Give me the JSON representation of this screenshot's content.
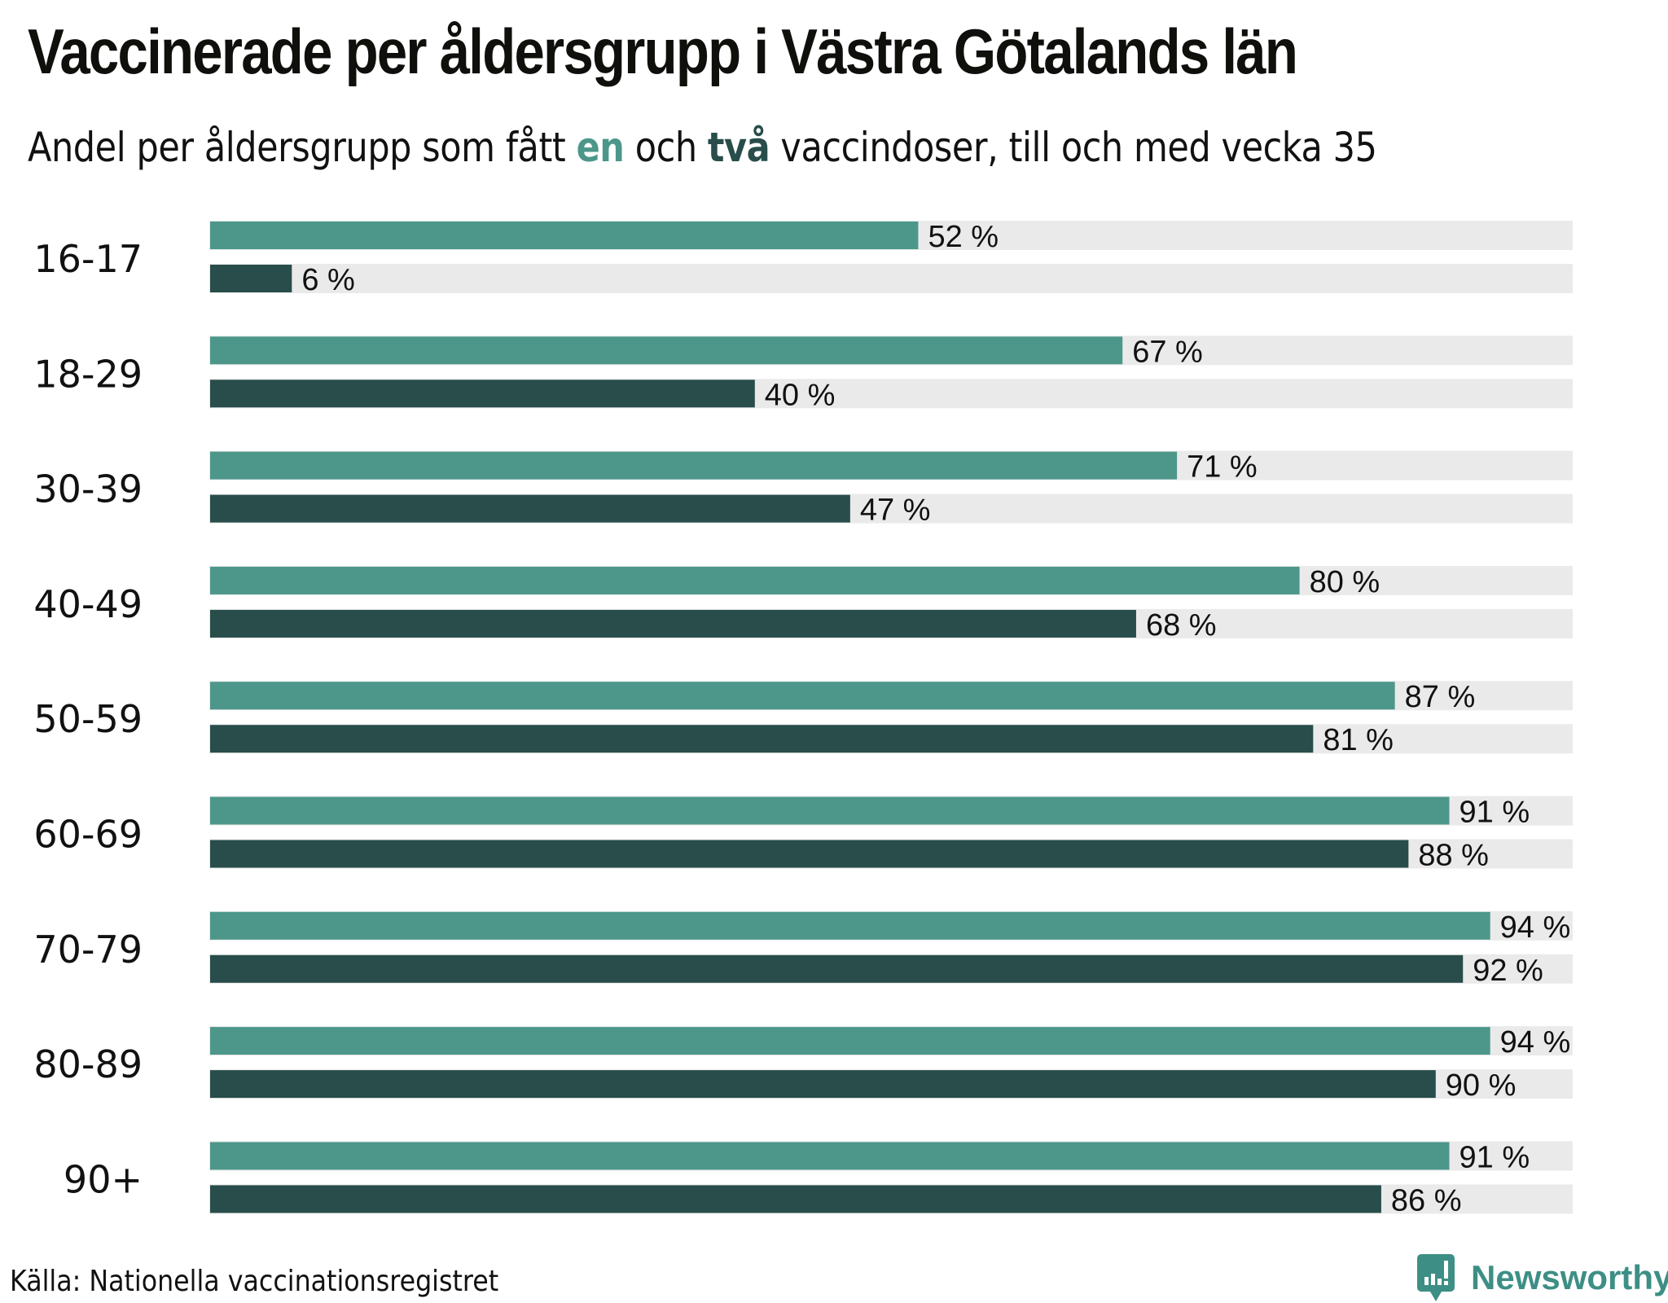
{
  "title": "Vaccinerade per åldersgrupp i Västra Götalands län",
  "subtitle": {
    "part1": "Andel per åldersgrupp som fått ",
    "en": "en",
    "part2": " och ",
    "tva": "två",
    "part3": " vaccindoser, till och med vecka 35"
  },
  "source": "Källa: Nationella vaccinationsregistret",
  "logo": {
    "text": "Newsworthy",
    "icon": "newsworthy-logo-icon"
  },
  "colors": {
    "en": "#4c978a",
    "tva": "#284d4a",
    "track": "#eaeaea"
  },
  "chart_data": {
    "type": "bar",
    "orientation": "horizontal",
    "title": "Vaccinerade per åldersgrupp i Västra Götalands län",
    "subtitle": "Andel per åldersgrupp som fått en och två vaccindoser, till och med vecka 35",
    "xlabel": "",
    "ylabel": "",
    "xlim": [
      0,
      100
    ],
    "unit": "%",
    "categories": [
      "16-17",
      "18-29",
      "30-39",
      "40-49",
      "50-59",
      "60-69",
      "70-79",
      "80-89",
      "90+"
    ],
    "series": [
      {
        "name": "en",
        "values": [
          52,
          67,
          71,
          80,
          87,
          91,
          94,
          94,
          91
        ],
        "labels": [
          "52 %",
          "67 %",
          "71 %",
          "80 %",
          "87 %",
          "91 %",
          "94 %",
          "94 %",
          "91 %"
        ]
      },
      {
        "name": "två",
        "values": [
          6,
          40,
          47,
          68,
          81,
          88,
          92,
          90,
          86
        ],
        "labels": [
          "6 %",
          "40 %",
          "47 %",
          "68 %",
          "81 %",
          "88 %",
          "92 %",
          "90 %",
          "86 %"
        ]
      }
    ],
    "grid": false,
    "legend": "inline in subtitle"
  }
}
